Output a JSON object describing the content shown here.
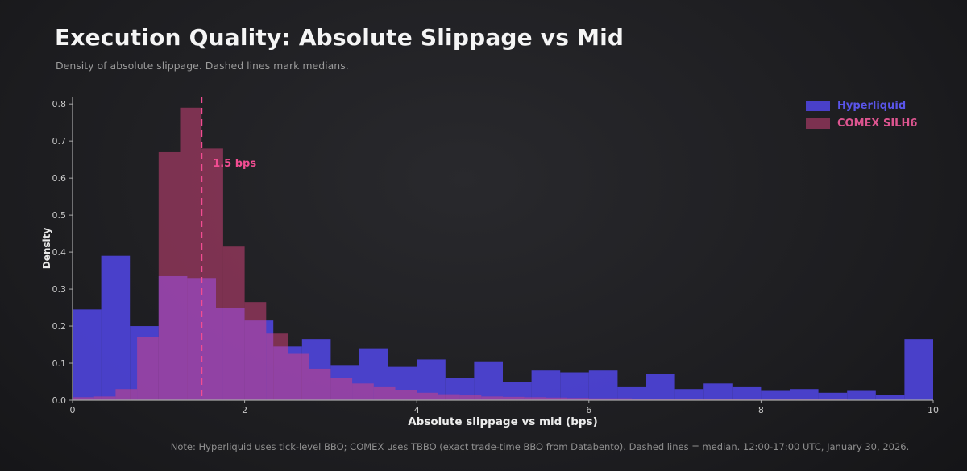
{
  "header": {
    "title": "Execution Quality: Absolute Slippage vs Mid",
    "subtitle": "Density of absolute slippage. Dashed lines mark medians."
  },
  "footer": {
    "note": "Note: Hyperliquid uses tick-level BBO; COMEX uses TBBO (exact trade-time BBO from Databento). Dashed lines = median. 12:00-17:00 UTC, January 30, 2026."
  },
  "legend": {
    "items": [
      {
        "label": "Hyperliquid",
        "swatch_color": "rgba(80,70,225,0.88)",
        "text_color": "#5a55ea"
      },
      {
        "label": "COMEX SILH6",
        "swatch_color": "rgba(217,68,126,0.5)",
        "text_color": "#dd5590"
      }
    ]
  },
  "chart_data": {
    "type": "histogram",
    "title": "Execution Quality: Absolute Slippage vs Mid",
    "xlabel": "Absolute slippage vs mid (bps)",
    "ylabel": "Density",
    "x_range": [
      0,
      10
    ],
    "y_range": [
      0,
      0.82
    ],
    "x_ticks": [
      {
        "v": 0,
        "label": "0"
      },
      {
        "v": 2,
        "label": "2"
      },
      {
        "v": 4,
        "label": "4"
      },
      {
        "v": 6,
        "label": "6"
      },
      {
        "v": 8,
        "label": "8"
      },
      {
        "v": 10,
        "label": "10"
      }
    ],
    "y_ticks": [
      {
        "v": 0.0,
        "label": "0.0"
      },
      {
        "v": 0.1,
        "label": "0.1"
      },
      {
        "v": 0.2,
        "label": "0.2"
      },
      {
        "v": 0.3,
        "label": "0.3"
      },
      {
        "v": 0.4,
        "label": "0.4"
      },
      {
        "v": 0.5,
        "label": "0.5"
      },
      {
        "v": 0.6,
        "label": "0.6"
      },
      {
        "v": 0.7,
        "label": "0.7"
      },
      {
        "v": 0.8,
        "label": "0.8"
      }
    ],
    "grid": false,
    "legend_position": "upper right",
    "median_line": {
      "x": 1.5,
      "label": "1.5 bps",
      "color": "#f24d92"
    },
    "series": [
      {
        "name": "Hyperliquid",
        "color": "rgba(80,70,225,0.88)",
        "bin_start": 0,
        "bin_width": 0.3333333,
        "values": [
          0.245,
          0.39,
          0.2,
          0.335,
          0.33,
          0.25,
          0.215,
          0.145,
          0.165,
          0.095,
          0.14,
          0.09,
          0.11,
          0.06,
          0.105,
          0.05,
          0.08,
          0.075,
          0.08,
          0.035,
          0.07,
          0.03,
          0.045,
          0.035,
          0.025,
          0.03,
          0.02,
          0.025,
          0.015,
          0.165
        ]
      },
      {
        "name": "COMEX SILH6",
        "color": "rgba(217,68,126,0.5)",
        "bin_start": 0,
        "bin_width": 0.25,
        "values": [
          0.008,
          0.01,
          0.03,
          0.17,
          0.67,
          0.79,
          0.68,
          0.415,
          0.265,
          0.18,
          0.125,
          0.085,
          0.06,
          0.045,
          0.035,
          0.027,
          0.02,
          0.016,
          0.013,
          0.01,
          0.009,
          0.008,
          0.007,
          0.006,
          0.005,
          0.005,
          0.004,
          0.004,
          0.003,
          0.003,
          0.003,
          0.002,
          0.002,
          0.002,
          0.002,
          0.002,
          0.001,
          0.001,
          0.001,
          0.001
        ]
      }
    ]
  }
}
